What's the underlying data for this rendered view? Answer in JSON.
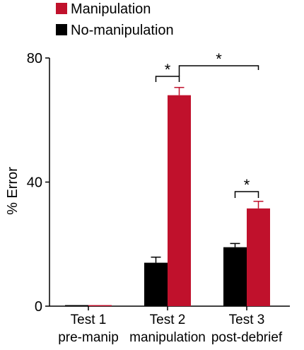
{
  "chart_data": {
    "type": "bar",
    "title": "",
    "xlabel": "",
    "ylabel": "% Error",
    "ylim": [
      0,
      80
    ],
    "yticks": [
      0,
      40,
      80
    ],
    "categories": [
      {
        "line1": "Test 1",
        "line2": "pre-manip"
      },
      {
        "line1": "Test 2",
        "line2": "manipulation"
      },
      {
        "line1": "Test 3",
        "line2": "post-debrief"
      }
    ],
    "series": [
      {
        "name": "No-manipulation",
        "color": "#000000",
        "values": [
          0.3,
          14,
          19
        ],
        "errors": [
          0,
          1.8,
          1.2
        ]
      },
      {
        "name": "Manipulation",
        "color": "#c0112c",
        "values": [
          0.3,
          68,
          31.5
        ],
        "errors": [
          0,
          2.5,
          2.3
        ]
      }
    ],
    "legend": {
      "position": "top-left",
      "order": [
        "Manipulation",
        "No-manipulation"
      ]
    },
    "significance": [
      {
        "label": "*",
        "between": "Test 2 No-manipulation vs Test 2 Manipulation"
      },
      {
        "label": "*",
        "between": "Test 2 Manipulation vs Test 3 Manipulation"
      },
      {
        "label": "*",
        "between": "Test 3 No-manipulation vs Test 3 Manipulation"
      }
    ]
  }
}
